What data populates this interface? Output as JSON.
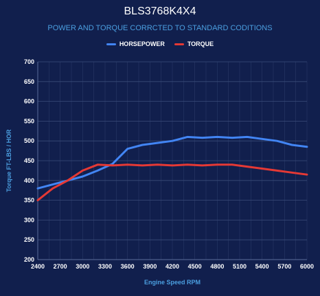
{
  "colors": {
    "background": "#111f4d",
    "grid": "#3a4c7a",
    "axis_text": "#ffffff",
    "label_text": "#4b9fe0",
    "horsepower": "#4285f4",
    "torque": "#e53935"
  },
  "chart_data": {
    "type": "line",
    "title": "BLS3768K4X4",
    "subtitle": "POWER AND TORQUE CORRCTED TO STANDARD CODITIONS",
    "xlabel": "Engine Speed RPM",
    "ylabel": "Torque FT-LBS / HOR",
    "xlim": [
      2400,
      6000
    ],
    "ylim": [
      200,
      700
    ],
    "x_ticks": [
      2400,
      2700,
      3000,
      3300,
      3600,
      3900,
      4200,
      4500,
      4800,
      5100,
      5400,
      5700,
      6000
    ],
    "y_ticks": [
      200,
      250,
      300,
      350,
      400,
      450,
      500,
      550,
      600,
      650,
      700
    ],
    "grid": true,
    "legend_position": "top",
    "series": [
      {
        "name": "HORSEPOWER",
        "color": "#4285f4",
        "x": [
          2400,
          2600,
          2800,
          3000,
          3200,
          3400,
          3600,
          3800,
          4000,
          4200,
          4400,
          4600,
          4800,
          5000,
          5200,
          5400,
          5600,
          5800,
          6000
        ],
        "y": [
          380,
          390,
          400,
          410,
          425,
          442,
          480,
          490,
          495,
          500,
          510,
          508,
          510,
          508,
          510,
          505,
          500,
          490,
          485
        ]
      },
      {
        "name": "TORQUE",
        "color": "#e53935",
        "x": [
          2400,
          2600,
          2800,
          3000,
          3200,
          3400,
          3600,
          3800,
          4000,
          4200,
          4400,
          4600,
          4800,
          5000,
          5200,
          5400,
          5600,
          5800,
          6000
        ],
        "y": [
          350,
          380,
          400,
          425,
          440,
          438,
          440,
          438,
          440,
          438,
          440,
          438,
          440,
          440,
          435,
          430,
          425,
          420,
          415
        ]
      }
    ]
  }
}
